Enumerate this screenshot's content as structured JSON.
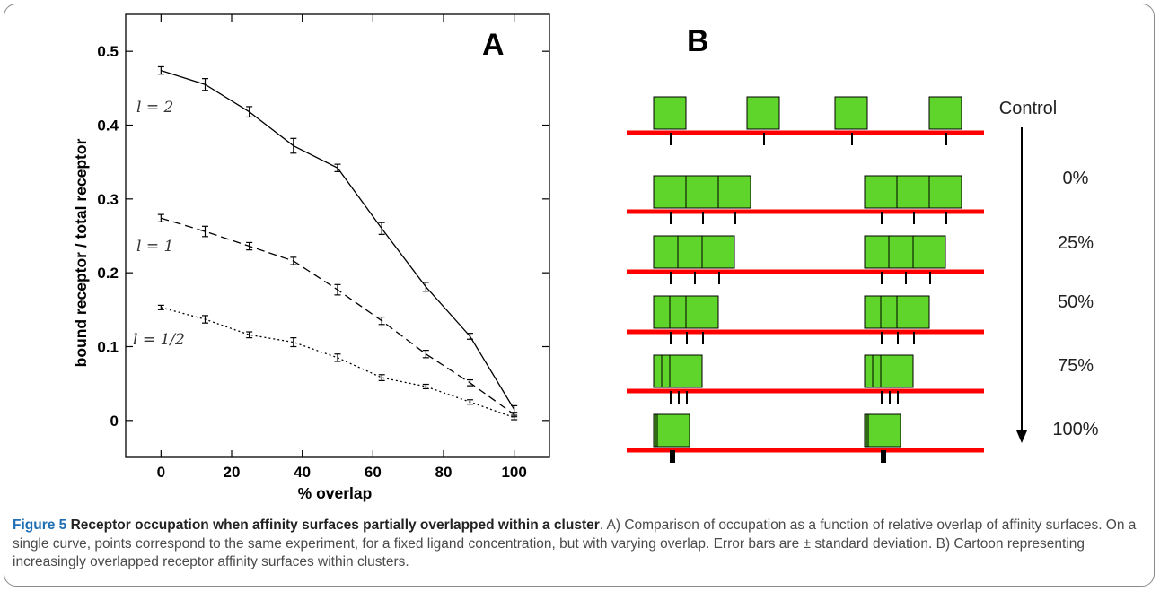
{
  "figure": {
    "caption_lead": "Figure 5",
    "caption_title": "Receptor occupation when affinity surfaces partially overlapped within a cluster",
    "caption_body": ". A) Comparison of occupation as a function of relative overlap of affinity surfaces. On a single curve, points correspond to the same experiment, for a fixed ligand concentration, but with varying overlap. Error bars are ± standard deviation. B) Cartoon representing increasingly overlapped receptor affinity surfaces within clusters."
  },
  "panel_a": {
    "letter": "A"
  },
  "panel_b": {
    "letter": "B",
    "rows": [
      {
        "label": "Control",
        "overlap": null
      },
      {
        "label": "0%",
        "overlap": 0
      },
      {
        "label": "25%",
        "overlap": 0.25
      },
      {
        "label": "50%",
        "overlap": 0.5
      },
      {
        "label": "75%",
        "overlap": 0.75
      },
      {
        "label": "100%",
        "overlap": 1
      }
    ],
    "colors": {
      "surface": "#5fd42a",
      "membrane": "#ff0000",
      "receptor": "#000000"
    }
  },
  "chart_data": {
    "type": "line",
    "xlabel": "% overlap",
    "ylabel": "bound receptor / total receptor",
    "xlim": [
      -10,
      110
    ],
    "ylim": [
      -0.05,
      0.55
    ],
    "xticks": [
      0,
      20,
      40,
      60,
      80,
      100
    ],
    "yticks": [
      0,
      0.1,
      0.2,
      0.3,
      0.4,
      0.5
    ],
    "ytick_labels": [
      "0",
      "0.1",
      "0.2",
      "0.3",
      "0.4",
      "0.5"
    ],
    "x": [
      0,
      12.5,
      25,
      37.5,
      50,
      62.5,
      75,
      87.5,
      100
    ],
    "grid": false,
    "series": [
      {
        "name": "l = 2",
        "style": "solid",
        "values": [
          0.474,
          0.455,
          0.418,
          0.372,
          0.342,
          0.26,
          0.181,
          0.114,
          0.015
        ],
        "errors": [
          0.005,
          0.008,
          0.007,
          0.01,
          0.005,
          0.008,
          0.006,
          0.004,
          0.005
        ]
      },
      {
        "name": "l = 1",
        "style": "dashed",
        "values": [
          0.274,
          0.256,
          0.236,
          0.216,
          0.177,
          0.135,
          0.09,
          0.051,
          0.008
        ],
        "errors": [
          0.005,
          0.007,
          0.005,
          0.005,
          0.007,
          0.005,
          0.005,
          0.004,
          0.003
        ]
      },
      {
        "name": "l = 1/2",
        "style": "dotted",
        "values": [
          0.153,
          0.137,
          0.116,
          0.106,
          0.085,
          0.058,
          0.046,
          0.025,
          0.004
        ],
        "errors": [
          0.003,
          0.005,
          0.004,
          0.006,
          0.005,
          0.004,
          0.003,
          0.003,
          0.003
        ]
      }
    ]
  }
}
